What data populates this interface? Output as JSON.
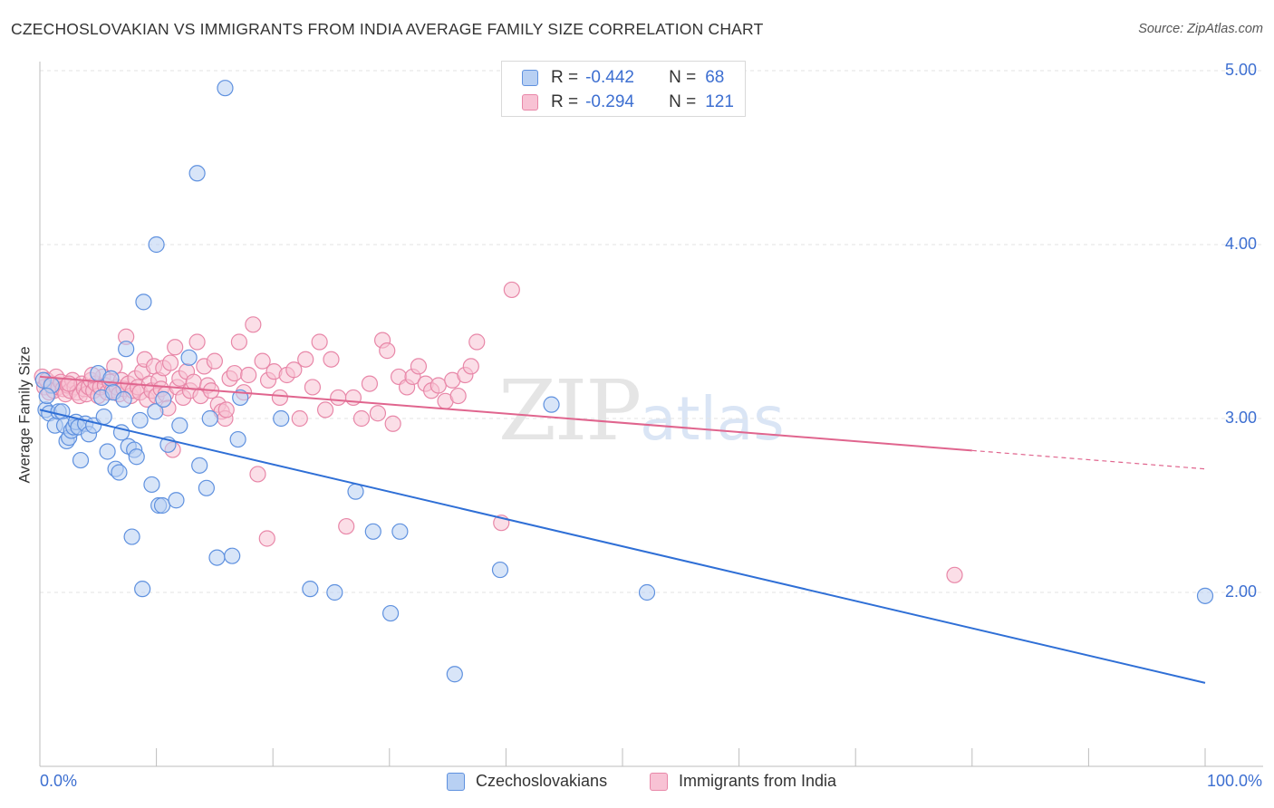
{
  "header": {
    "title": "CZECHOSLOVAKIAN VS IMMIGRANTS FROM INDIA AVERAGE FAMILY SIZE CORRELATION CHART",
    "source": "Source: ZipAtlas.com"
  },
  "watermark": {
    "part1": "ZIP",
    "part2": "atlas"
  },
  "colors": {
    "czech_fill": "#b8d0f3",
    "czech_stroke": "#5f91df",
    "czech_line": "#2f6fd6",
    "india_fill": "#f8c2d4",
    "india_stroke": "#e887a8",
    "india_line": "#e0658e",
    "tick_label": "#3d6fd1",
    "grid": "#e3e3e3"
  },
  "legend_top": {
    "rows": [
      {
        "r_label": "R =",
        "r_value": "-0.442",
        "n_label": "N =",
        "n_value": "68"
      },
      {
        "r_label": "R =",
        "r_value": "-0.294",
        "n_label": "N =",
        "n_value": "121"
      }
    ]
  },
  "legend_bottom": {
    "items": [
      "Czechoslovakians",
      "Immigrants from India"
    ]
  },
  "chart_data": {
    "type": "scatter",
    "title": "CZECHOSLOVAKIAN VS IMMIGRANTS FROM INDIA AVERAGE FAMILY SIZE CORRELATION CHART",
    "xlabel": "",
    "ylabel": "Average Family Size",
    "xlim": [
      0,
      100
    ],
    "ylim": [
      1.0,
      5.25
    ],
    "x_tick_labels": [
      "0.0%",
      "100.0%"
    ],
    "y_ticks": [
      2.0,
      3.0,
      4.0,
      5.0
    ],
    "y_tick_labels": [
      "2.00",
      "3.00",
      "4.00",
      "5.00"
    ],
    "grid": "horizontal dashed",
    "legend": "top-center",
    "series": [
      {
        "name": "Czechoslovakians",
        "r": -0.442,
        "n": 68,
        "trend": {
          "x": [
            0,
            100
          ],
          "y": [
            3.05,
            1.48
          ],
          "dashed_from": null
        },
        "points": [
          [
            0.3,
            3.22
          ],
          [
            0.5,
            3.05
          ],
          [
            0.8,
            3.03
          ],
          [
            1.0,
            3.19
          ],
          [
            1.3,
            2.96
          ],
          [
            1.6,
            3.04
          ],
          [
            1.9,
            3.04
          ],
          [
            2.1,
            2.96
          ],
          [
            2.3,
            2.87
          ],
          [
            2.5,
            2.89
          ],
          [
            2.7,
            2.93
          ],
          [
            2.9,
            2.95
          ],
          [
            3.1,
            2.98
          ],
          [
            3.3,
            2.95
          ],
          [
            3.5,
            2.76
          ],
          [
            3.9,
            2.97
          ],
          [
            4.2,
            2.91
          ],
          [
            4.6,
            2.96
          ],
          [
            5.0,
            3.26
          ],
          [
            5.3,
            3.12
          ],
          [
            5.5,
            3.01
          ],
          [
            5.8,
            2.81
          ],
          [
            6.1,
            3.23
          ],
          [
            6.3,
            3.15
          ],
          [
            6.5,
            2.71
          ],
          [
            6.8,
            2.69
          ],
          [
            7.0,
            2.92
          ],
          [
            7.2,
            3.11
          ],
          [
            7.4,
            3.4
          ],
          [
            7.6,
            2.84
          ],
          [
            7.9,
            2.32
          ],
          [
            8.1,
            2.82
          ],
          [
            8.3,
            2.78
          ],
          [
            8.6,
            2.99
          ],
          [
            8.8,
            2.02
          ],
          [
            8.9,
            3.67
          ],
          [
            9.6,
            2.62
          ],
          [
            9.9,
            3.04
          ],
          [
            10.0,
            4.0
          ],
          [
            10.2,
            2.5
          ],
          [
            10.5,
            2.5
          ],
          [
            10.6,
            3.11
          ],
          [
            11.0,
            2.85
          ],
          [
            11.7,
            2.53
          ],
          [
            12.0,
            2.96
          ],
          [
            12.8,
            3.35
          ],
          [
            13.5,
            4.41
          ],
          [
            13.7,
            2.73
          ],
          [
            14.3,
            2.6
          ],
          [
            14.6,
            3.0
          ],
          [
            15.2,
            2.2
          ],
          [
            15.9,
            4.9
          ],
          [
            16.5,
            2.21
          ],
          [
            17.0,
            2.88
          ],
          [
            17.2,
            3.12
          ],
          [
            20.7,
            3.0
          ],
          [
            23.2,
            2.02
          ],
          [
            25.3,
            2.0
          ],
          [
            27.1,
            2.58
          ],
          [
            28.6,
            2.35
          ],
          [
            30.1,
            1.88
          ],
          [
            30.9,
            2.35
          ],
          [
            35.6,
            1.53
          ],
          [
            39.5,
            2.13
          ],
          [
            43.9,
            3.08
          ],
          [
            52.1,
            2.0
          ],
          [
            100.0,
            1.98
          ],
          [
            0.6,
            3.13
          ]
        ]
      },
      {
        "name": "Immigrants from India",
        "r": -0.294,
        "n": 121,
        "trend": {
          "x": [
            0,
            100
          ],
          "y": [
            3.24,
            2.71
          ],
          "dashed_from": 80
        },
        "points": [
          [
            0.2,
            3.24
          ],
          [
            0.4,
            3.18
          ],
          [
            0.6,
            3.22
          ],
          [
            0.8,
            3.15
          ],
          [
            1.0,
            3.2
          ],
          [
            1.2,
            3.16
          ],
          [
            1.4,
            3.24
          ],
          [
            1.6,
            3.18
          ],
          [
            1.8,
            3.21
          ],
          [
            2.0,
            3.17
          ],
          [
            2.2,
            3.14
          ],
          [
            2.4,
            3.19
          ],
          [
            2.6,
            3.16
          ],
          [
            2.8,
            3.22
          ],
          [
            3.0,
            3.18
          ],
          [
            3.2,
            3.15
          ],
          [
            3.4,
            3.13
          ],
          [
            3.6,
            3.2
          ],
          [
            3.8,
            3.17
          ],
          [
            4.0,
            3.14
          ],
          [
            4.2,
            3.18
          ],
          [
            4.4,
            3.22
          ],
          [
            4.6,
            3.16
          ],
          [
            4.8,
            3.2
          ],
          [
            5.0,
            3.13
          ],
          [
            5.2,
            3.18
          ],
          [
            5.4,
            3.24
          ],
          [
            5.6,
            3.19
          ],
          [
            5.8,
            3.15
          ],
          [
            6.0,
            3.21
          ],
          [
            6.2,
            3.16
          ],
          [
            6.4,
            3.3
          ],
          [
            6.6,
            3.18
          ],
          [
            6.8,
            3.14
          ],
          [
            7.0,
            3.22
          ],
          [
            7.2,
            3.17
          ],
          [
            7.4,
            3.47
          ],
          [
            7.6,
            3.2
          ],
          [
            7.8,
            3.13
          ],
          [
            8.0,
            3.16
          ],
          [
            8.2,
            3.23
          ],
          [
            8.4,
            3.18
          ],
          [
            8.6,
            3.15
          ],
          [
            8.8,
            3.27
          ],
          [
            9.0,
            3.34
          ],
          [
            9.2,
            3.11
          ],
          [
            9.4,
            3.2
          ],
          [
            9.6,
            3.16
          ],
          [
            9.8,
            3.3
          ],
          [
            10.0,
            3.13
          ],
          [
            10.2,
            3.22
          ],
          [
            10.4,
            3.17
          ],
          [
            10.6,
            3.29
          ],
          [
            10.8,
            3.14
          ],
          [
            11.0,
            3.06
          ],
          [
            11.2,
            3.32
          ],
          [
            11.4,
            2.82
          ],
          [
            11.6,
            3.41
          ],
          [
            11.8,
            3.18
          ],
          [
            12.0,
            3.23
          ],
          [
            12.3,
            3.12
          ],
          [
            12.6,
            3.27
          ],
          [
            12.9,
            3.16
          ],
          [
            13.2,
            3.21
          ],
          [
            13.5,
            3.44
          ],
          [
            13.8,
            3.13
          ],
          [
            14.1,
            3.3
          ],
          [
            14.4,
            3.19
          ],
          [
            14.7,
            3.16
          ],
          [
            15.0,
            3.33
          ],
          [
            15.3,
            3.08
          ],
          [
            15.6,
            3.04
          ],
          [
            15.9,
            3.0
          ],
          [
            16.3,
            3.23
          ],
          [
            16.7,
            3.26
          ],
          [
            17.1,
            3.44
          ],
          [
            17.5,
            3.15
          ],
          [
            17.9,
            3.25
          ],
          [
            18.3,
            3.54
          ],
          [
            18.7,
            2.68
          ],
          [
            19.1,
            3.33
          ],
          [
            19.6,
            3.22
          ],
          [
            20.1,
            3.27
          ],
          [
            20.6,
            3.12
          ],
          [
            21.2,
            3.25
          ],
          [
            21.8,
            3.28
          ],
          [
            22.3,
            3.0
          ],
          [
            22.8,
            3.34
          ],
          [
            23.4,
            3.18
          ],
          [
            24.0,
            3.44
          ],
          [
            24.5,
            3.05
          ],
          [
            25.0,
            3.34
          ],
          [
            25.6,
            3.12
          ],
          [
            26.3,
            2.38
          ],
          [
            26.9,
            3.12
          ],
          [
            27.6,
            3.0
          ],
          [
            28.3,
            3.2
          ],
          [
            29.0,
            3.03
          ],
          [
            29.4,
            3.45
          ],
          [
            29.8,
            3.39
          ],
          [
            30.3,
            2.97
          ],
          [
            30.8,
            3.24
          ],
          [
            31.5,
            3.18
          ],
          [
            32.0,
            3.24
          ],
          [
            32.5,
            3.3
          ],
          [
            33.1,
            3.2
          ],
          [
            33.6,
            3.16
          ],
          [
            34.2,
            3.19
          ],
          [
            34.8,
            3.1
          ],
          [
            35.4,
            3.22
          ],
          [
            35.9,
            3.13
          ],
          [
            36.5,
            3.25
          ],
          [
            37.0,
            3.3
          ],
          [
            37.5,
            3.44
          ],
          [
            39.6,
            2.4
          ],
          [
            40.5,
            3.74
          ],
          [
            78.5,
            2.1
          ],
          [
            19.5,
            2.31
          ],
          [
            16.0,
            3.05
          ],
          [
            4.5,
            3.25
          ],
          [
            2.5,
            3.2
          ]
        ]
      }
    ]
  }
}
